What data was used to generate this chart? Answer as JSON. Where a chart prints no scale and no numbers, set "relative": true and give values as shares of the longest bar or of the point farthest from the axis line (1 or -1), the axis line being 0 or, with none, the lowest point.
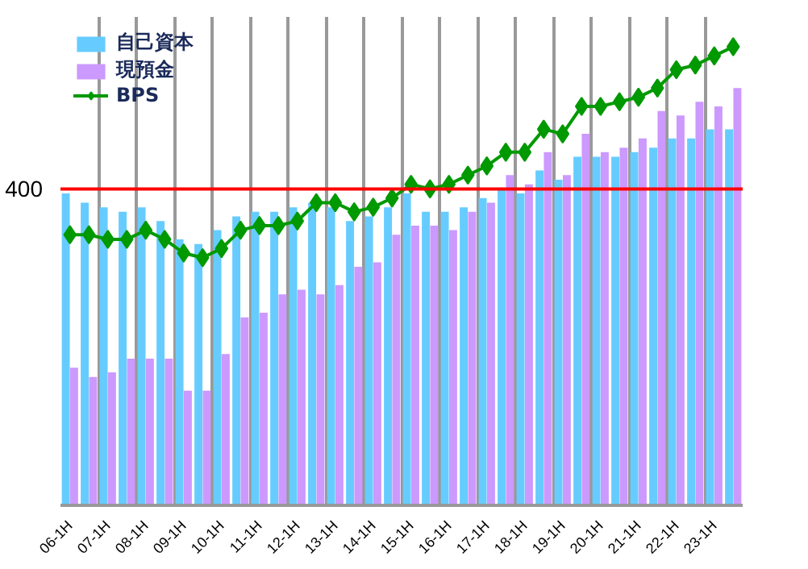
{
  "chart_data": {
    "type": "bar",
    "relative": true,
    "categories": [
      "06-1H",
      null,
      "07-1H",
      null,
      "08-1H",
      null,
      "09-1H",
      null,
      "10-1H",
      null,
      "11-1H",
      null,
      "12-1H",
      null,
      "13-1H",
      null,
      "14-1H",
      null,
      "15-1H",
      null,
      "16-1H",
      null,
      "17-1H",
      null,
      "18-1H",
      null,
      "19-1H",
      null,
      "20-1H",
      null,
      "21-1H",
      null,
      "22-1H",
      null,
      "23-1H",
      null
    ],
    "series": [
      {
        "name": "自己資本",
        "color": "#66ccff",
        "values": [
          0.68,
          0.66,
          0.65,
          0.64,
          0.65,
          0.62,
          0.58,
          0.57,
          0.6,
          0.63,
          0.64,
          0.64,
          0.65,
          0.66,
          0.65,
          0.62,
          0.63,
          0.65,
          0.68,
          0.64,
          0.64,
          0.65,
          0.67,
          0.69,
          0.68,
          0.73,
          0.71,
          0.76,
          0.76,
          0.76,
          0.77,
          0.78,
          0.8,
          0.8,
          0.82,
          0.82
        ]
      },
      {
        "name": "現預金",
        "color": "#cc99ff",
        "values": [
          0.3,
          0.28,
          0.29,
          0.32,
          0.32,
          0.32,
          0.25,
          0.25,
          0.33,
          0.41,
          0.42,
          0.46,
          0.47,
          0.46,
          0.48,
          0.52,
          0.53,
          0.59,
          0.61,
          0.61,
          0.6,
          0.64,
          0.66,
          0.72,
          0.7,
          0.77,
          0.72,
          0.81,
          0.77,
          0.78,
          0.8,
          0.86,
          0.85,
          0.88,
          0.87,
          0.91
        ]
      },
      {
        "name": "BPS",
        "type": "line",
        "color": "#009900",
        "marker": "diamond",
        "values": [
          0.59,
          0.59,
          0.58,
          0.58,
          0.6,
          0.58,
          0.55,
          0.54,
          0.56,
          0.6,
          0.61,
          0.61,
          0.62,
          0.66,
          0.66,
          0.64,
          0.65,
          0.67,
          0.7,
          0.69,
          0.7,
          0.72,
          0.74,
          0.77,
          0.77,
          0.82,
          0.81,
          0.87,
          0.87,
          0.88,
          0.89,
          0.91,
          0.95,
          0.96,
          0.98,
          1
        ]
      }
    ],
    "ref_lines": [
      {
        "axis": "y",
        "value": 0.69,
        "color": "#ff0000"
      }
    ],
    "annotations": [
      "400"
    ],
    "grid": "x",
    "legend": "top left"
  }
}
